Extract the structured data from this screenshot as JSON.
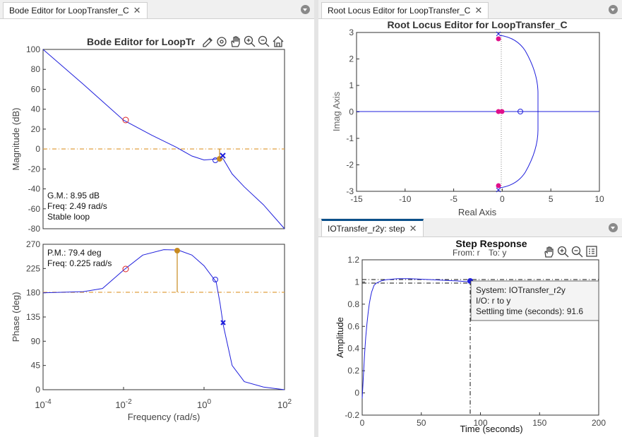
{
  "colors": {
    "curve": "#1f1fdc",
    "zero_marker": "#dc2020",
    "pole_marker": "#1f1fdc",
    "margin_marker": "#c88a1f",
    "reference_line": "#e0a040",
    "root_locus_pink": "#e0108a",
    "accent_tab": "#0a4f8a"
  },
  "bode_panel": {
    "tab_label": "Bode Editor for LoopTransfer_C",
    "title": "Bode Editor for LoopTr",
    "toolbar_icons": [
      "edit-icon",
      "settings-icon",
      "pan-icon",
      "zoom-in-icon",
      "zoom-out-icon",
      "home-icon"
    ],
    "magnitude": {
      "ylabel": "Magnitude (dB)",
      "yticks": [
        "100",
        "80",
        "60",
        "40",
        "20",
        "0",
        "-20",
        "-40",
        "-60",
        "-80"
      ],
      "gain_margin_text": "G.M.: 8.95 dB",
      "gain_margin_freq_text": "Freq: 2.49 rad/s",
      "stability_text": "Stable loop"
    },
    "phase": {
      "ylabel": "Phase (deg)",
      "yticks": [
        "270",
        "225",
        "180",
        "135",
        "90",
        "45",
        "0"
      ],
      "phase_margin_text": "P.M.: 79.4 deg",
      "phase_margin_freq_text": "Freq: 0.225 rad/s"
    },
    "xlabel": "Frequency (rad/s)",
    "xticks": [
      {
        "base": "10",
        "exp": "-4"
      },
      {
        "base": "10",
        "exp": "-2"
      },
      {
        "base": "10",
        "exp": "0"
      },
      {
        "base": "10",
        "exp": "2"
      }
    ]
  },
  "root_locus_panel": {
    "tab_label": "Root Locus Editor for LoopTransfer_C",
    "title": "Root Locus Editor for LoopTransfer_C",
    "xlabel": "Real Axis",
    "ylabel": "Imag Axis",
    "xticks": [
      "-15",
      "-10",
      "-5",
      "0",
      "5",
      "10"
    ],
    "yticks": [
      "3",
      "2",
      "1",
      "0",
      "-1",
      "-2",
      "-3"
    ]
  },
  "step_panel": {
    "tab_label": "IOTransfer_r2y: step",
    "title": "Step Response",
    "subtitle_from": "From: r",
    "subtitle_to": "To: y",
    "toolbar_icons": [
      "pan-icon",
      "zoom-in-icon",
      "zoom-out-icon",
      "legend-icon"
    ],
    "xlabel": "Time (seconds)",
    "ylabel": "Amplitude",
    "xticks": [
      "0",
      "50",
      "100",
      "150",
      "200"
    ],
    "yticks": [
      "1.2",
      "1",
      "0.8",
      "0.6",
      "0.4",
      "0.2",
      "0",
      "-0.2"
    ],
    "datatip": {
      "system": "System: IOTransfer_r2y",
      "io": "I/O: r to y",
      "settling": "Settling time (seconds): 91.6"
    }
  },
  "chart_data": [
    {
      "type": "line",
      "title": "Bode Editor for LoopTr",
      "xlabel": "Frequency (rad/s)",
      "ylabel": "Magnitude (dB)",
      "xscale": "log",
      "xlim": [
        0.0001,
        100
      ],
      "ylim": [
        -80,
        100
      ],
      "grid": false,
      "series": [
        {
          "x": [
            0.0001,
            0.001,
            0.01,
            0.05,
            0.2,
            0.5,
            1,
            2,
            2.5,
            3,
            5,
            10,
            30,
            100
          ],
          "y": [
            100,
            65,
            29,
            14,
            2,
            -7,
            -11,
            -10,
            -8,
            -10,
            -25,
            -38,
            -56,
            -80
          ]
        }
      ],
      "zeros": [
        {
          "x": 0.011,
          "y": 29
        },
        {
          "x": 2.0,
          "y": -11
        }
      ],
      "poles": [
        {
          "x": 2.8,
          "y": -7
        }
      ],
      "reference_line_y": 0
    },
    {
      "type": "line",
      "xlabel": "Frequency (rad/s)",
      "ylabel": "Phase (deg)",
      "xscale": "log",
      "xlim": [
        0.0001,
        100
      ],
      "ylim": [
        0,
        270
      ],
      "grid": false,
      "series": [
        {
          "x": [
            0.0001,
            0.001,
            0.003,
            0.01,
            0.03,
            0.1,
            0.225,
            0.5,
            1,
            2,
            2.5,
            3,
            5,
            10,
            30,
            100
          ],
          "y": [
            180,
            182,
            188,
            222,
            250,
            260,
            259.4,
            250,
            230,
            200,
            160,
            120,
            45,
            15,
            5,
            0
          ]
        }
      ],
      "zeros": [
        {
          "x": 0.011,
          "y": 224
        },
        {
          "x": 2.0,
          "y": 205
        }
      ],
      "poles": [
        {
          "x": 3.0,
          "y": 124
        }
      ],
      "phase_margin": {
        "x": 0.225,
        "y": 259.4
      },
      "reference_line_y": 180
    },
    {
      "type": "scatter",
      "title": "Root Locus Editor for LoopTransfer_C",
      "xlabel": "Real Axis",
      "ylabel": "Imag Axis",
      "xlim": [
        -15,
        10
      ],
      "ylim": [
        -3,
        3
      ],
      "grid": false,
      "poles": [
        {
          "x": -0.2,
          "y": 3.0
        },
        {
          "x": -0.2,
          "y": -3.0
        },
        {
          "x": 0,
          "y": 0
        }
      ],
      "zeros": [
        {
          "x": 2.0,
          "y": 0
        },
        {
          "x": -0.2,
          "y": 0
        }
      ],
      "closed_loop_poles": [
        {
          "x": -0.2,
          "y": 2.8
        },
        {
          "x": -0.2,
          "y": -2.8
        },
        {
          "x": -0.1,
          "y": 0
        },
        {
          "x": 0.1,
          "y": 0
        }
      ],
      "branch_upper": {
        "x": [
          -0.2,
          0.5,
          1.5,
          2.5,
          3.3,
          3.7,
          3.8
        ],
        "y": [
          2.85,
          2.75,
          2.6,
          2.1,
          1.3,
          0.6,
          0
        ]
      },
      "branch_lower": {
        "x": [
          -0.2,
          0.5,
          1.5,
          2.5,
          3.3,
          3.7,
          3.8
        ],
        "y": [
          -2.85,
          -2.75,
          -2.6,
          -2.1,
          -1.3,
          -0.6,
          0
        ]
      }
    },
    {
      "type": "line",
      "title": "Step Response",
      "xlabel": "Time (seconds)",
      "ylabel": "Amplitude",
      "xlim": [
        0,
        200
      ],
      "ylim": [
        -0.2,
        1.2
      ],
      "grid": false,
      "series": [
        {
          "x": [
            0,
            1,
            2,
            3,
            4,
            5,
            6,
            7,
            8,
            9,
            10,
            12,
            14,
            16,
            20,
            30,
            40,
            60,
            80,
            91.6,
            100,
            120,
            150,
            200
          ],
          "y": [
            -0.05,
            0.15,
            0.35,
            0.5,
            0.62,
            0.72,
            0.8,
            0.86,
            0.91,
            0.94,
            0.97,
            0.99,
            1.0,
            1.01,
            1.02,
            1.03,
            1.03,
            1.02,
            1.01,
            1.0,
            1.0,
            1.0,
            1.0,
            1.0
          ]
        }
      ],
      "settling_time": 91.6,
      "settling_value": 1.0
    }
  ]
}
